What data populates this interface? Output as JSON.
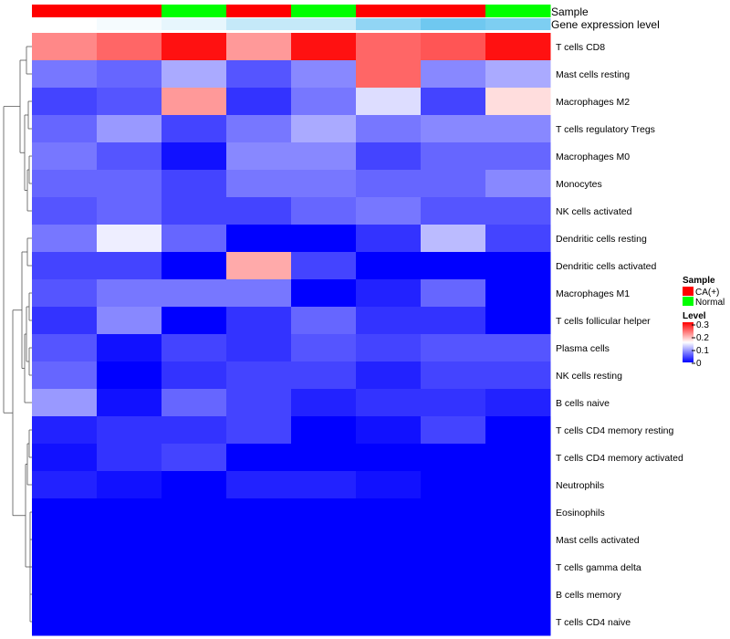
{
  "chart_data": {
    "type": "heatmap",
    "annotation_labels": [
      "Sample",
      "Gene expression level"
    ],
    "sample_group": [
      "CA(+)",
      "CA(+)",
      "Normal",
      "CA(+)",
      "Normal",
      "CA(+)",
      "CA(+)",
      "Normal"
    ],
    "gene_expression_level": [
      0.1,
      0.12,
      0.15,
      0.22,
      0.22,
      0.33,
      0.4,
      0.37
    ],
    "rows": [
      "T cells CD8",
      "Mast cells resting",
      "Macrophages M2",
      "T cells regulatory  Tregs",
      "Macrophages M0",
      "Monocytes",
      "NK cells activated",
      "Dendritic cells resting",
      "Dendritic cells activated",
      "Macrophages M1",
      "T cells follicular helper",
      "Plasma cells",
      "NK cells resting",
      "B cells naive",
      "T cells CD4 memory resting",
      "T cells CD4 memory activated",
      "Neutrophils",
      "Eosinophils",
      "Mast cells activated",
      "T cells gamma delta",
      "B cells memory",
      "T cells CD4 naive"
    ],
    "values": [
      [
        0.22,
        0.24,
        0.29,
        0.21,
        0.29,
        0.24,
        0.25,
        0.29
      ],
      [
        0.07,
        0.06,
        0.1,
        0.05,
        0.08,
        0.24,
        0.08,
        0.1
      ],
      [
        0.04,
        0.05,
        0.21,
        0.03,
        0.07,
        0.13,
        0.04,
        0.17
      ],
      [
        0.06,
        0.09,
        0.04,
        0.07,
        0.1,
        0.07,
        0.08,
        0.08
      ],
      [
        0.07,
        0.05,
        0.01,
        0.08,
        0.08,
        0.04,
        0.06,
        0.06
      ],
      [
        0.06,
        0.06,
        0.04,
        0.07,
        0.07,
        0.06,
        0.06,
        0.08
      ],
      [
        0.05,
        0.06,
        0.04,
        0.04,
        0.06,
        0.07,
        0.05,
        0.05
      ],
      [
        0.07,
        0.14,
        0.06,
        0.0,
        0.0,
        0.03,
        0.11,
        0.04
      ],
      [
        0.04,
        0.04,
        0.0,
        0.2,
        0.04,
        0.0,
        0.0,
        0.0
      ],
      [
        0.05,
        0.07,
        0.07,
        0.07,
        0.0,
        0.02,
        0.06,
        0.0
      ],
      [
        0.03,
        0.08,
        0.0,
        0.03,
        0.06,
        0.03,
        0.03,
        0.0
      ],
      [
        0.05,
        0.01,
        0.04,
        0.03,
        0.05,
        0.04,
        0.05,
        0.05
      ],
      [
        0.06,
        0.0,
        0.03,
        0.04,
        0.04,
        0.02,
        0.04,
        0.04
      ],
      [
        0.09,
        0.01,
        0.06,
        0.04,
        0.02,
        0.03,
        0.03,
        0.02
      ],
      [
        0.02,
        0.03,
        0.03,
        0.04,
        0.0,
        0.01,
        0.04,
        0.0
      ],
      [
        0.01,
        0.03,
        0.04,
        0.0,
        0.0,
        0.0,
        0.0,
        0.0
      ],
      [
        0.02,
        0.01,
        0.0,
        0.02,
        0.02,
        0.01,
        0.0,
        0.0
      ],
      [
        0.0,
        0.0,
        0.0,
        0.0,
        0.0,
        0.0,
        0.0,
        0.0
      ],
      [
        0.0,
        0.0,
        0.0,
        0.0,
        0.0,
        0.0,
        0.0,
        0.0
      ],
      [
        0.0,
        0.0,
        0.0,
        0.0,
        0.0,
        0.0,
        0.0,
        0.0
      ],
      [
        0.0,
        0.0,
        0.0,
        0.0,
        0.0,
        0.0,
        0.0,
        0.0
      ],
      [
        0.0,
        0.0,
        0.0,
        0.0,
        0.0,
        0.0,
        0.0,
        0.0
      ]
    ],
    "color_scale": {
      "min": 0,
      "mid": 0.15,
      "max": 0.3,
      "low_color": "#0000ff",
      "mid_color": "#ffffff",
      "high_color": "#ff0000"
    },
    "legend": {
      "sample_title": "Sample",
      "sample_entries": [
        {
          "name": "CA(+)",
          "color": "#ff0000"
        },
        {
          "name": "Normal",
          "color": "#00ff00"
        }
      ],
      "level_title": "Level",
      "level_ticks": [
        "0.3",
        "0.2",
        "0.1",
        "0"
      ],
      "placement": "right"
    },
    "expression_colors": {
      "low": "#ffffff",
      "high": "#6fc8f0"
    },
    "row_dendrogram": true
  }
}
